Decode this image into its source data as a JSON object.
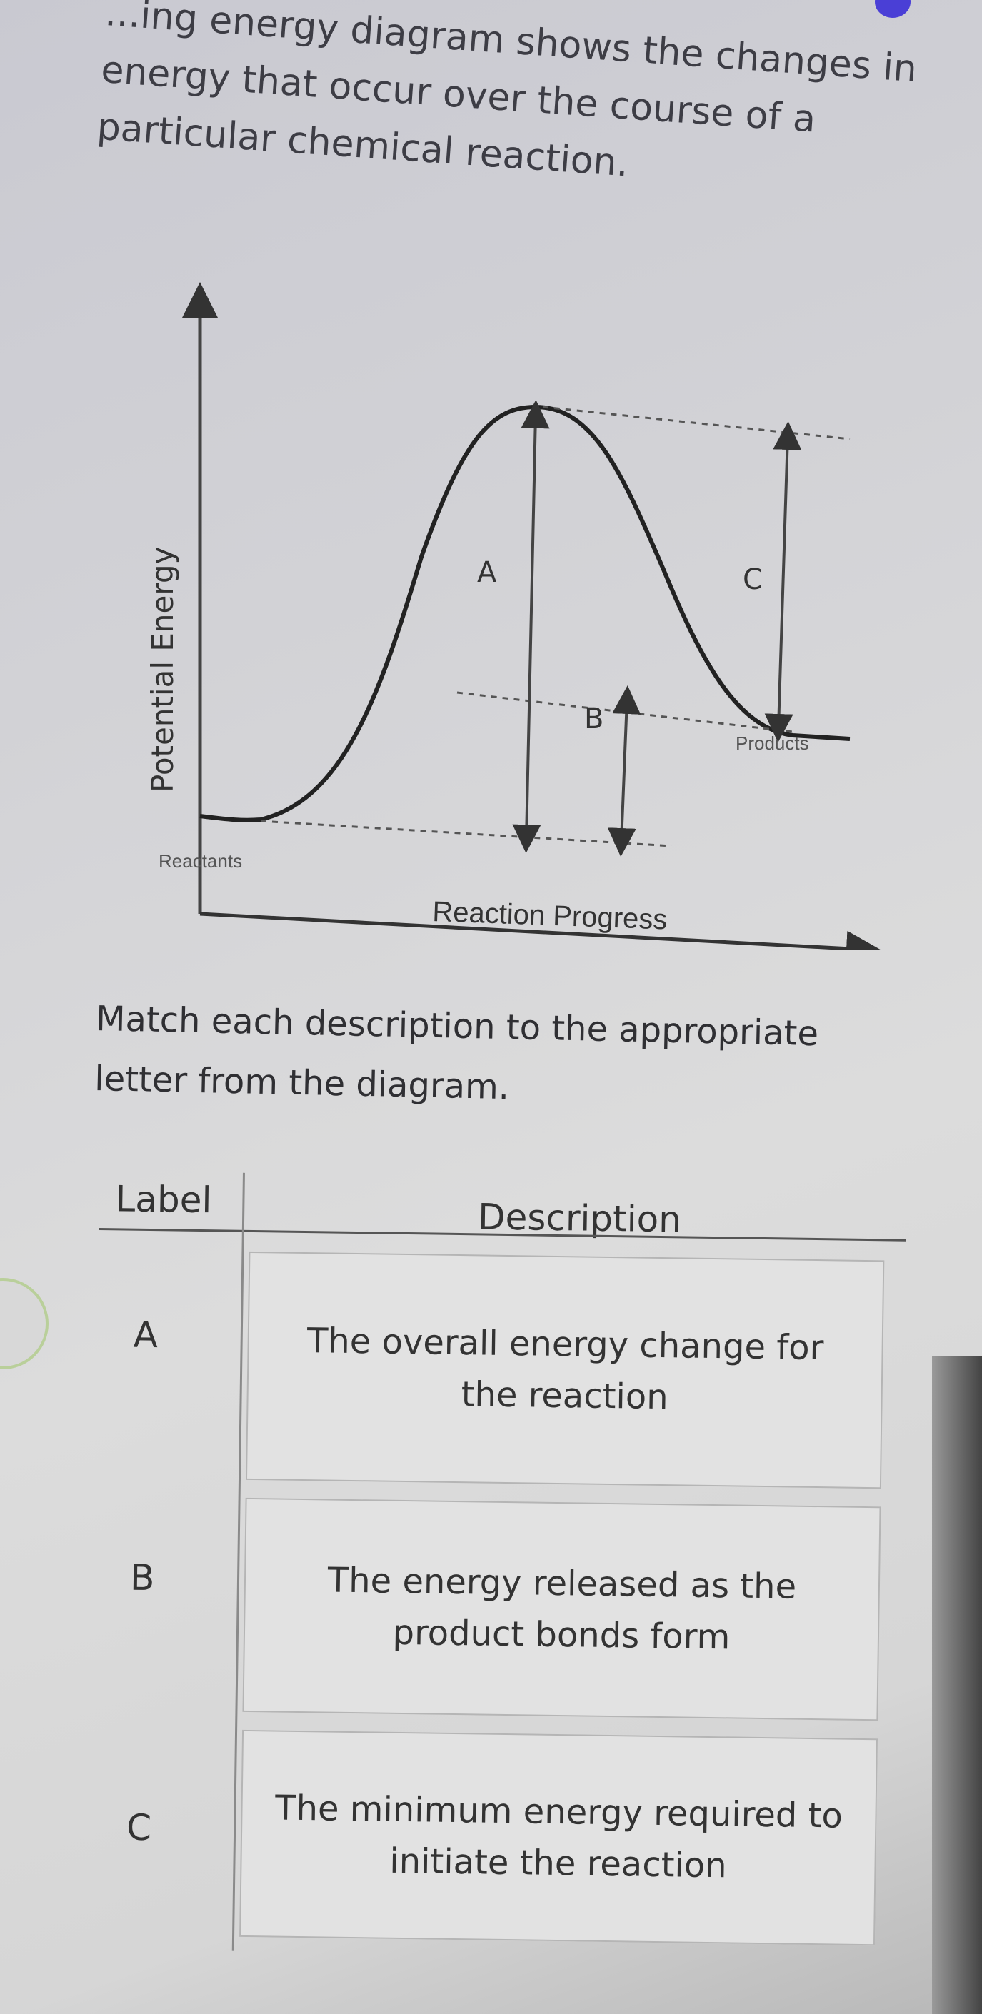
{
  "intro_text": "...ing energy diagram shows the changes in energy that occur over the course of a particular chemical reaction.",
  "diagram": {
    "y_axis_label": "Potential Energy",
    "x_axis_label": "Reaction Progress",
    "reactants_label": "Reactants",
    "products_label": "Products",
    "letters": {
      "a": "A",
      "b": "B",
      "c": "C"
    }
  },
  "prompt": "Match each description to the appropriate letter from the diagram.",
  "table": {
    "header_label": "Label",
    "header_description": "Description",
    "rows": [
      {
        "label": "A",
        "description": "The overall energy change for the reaction"
      },
      {
        "label": "B",
        "description": "The energy released as the product bonds form"
      },
      {
        "label": "C",
        "description": "The minimum energy required to initiate the reaction"
      }
    ]
  },
  "colors": {
    "accent": "#4a3fd6"
  }
}
